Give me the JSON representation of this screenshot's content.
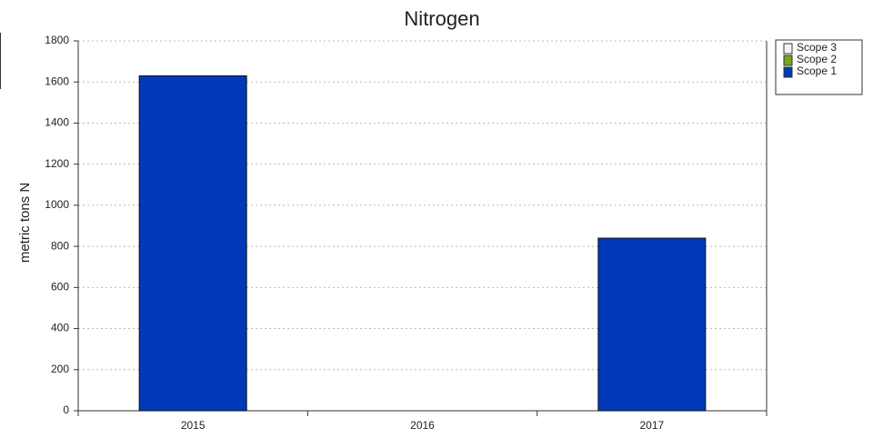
{
  "chart_data": {
    "type": "bar",
    "stacked": true,
    "title": "Nitrogen",
    "y_label": "metric tons N",
    "categories": [
      "2015",
      "2016",
      "2017"
    ],
    "series": [
      {
        "name": "Scope 1",
        "color": "#0039b8",
        "values": [
          1630,
          0,
          840
        ]
      },
      {
        "name": "Scope 2",
        "color": "#7aa51e",
        "values": [
          0,
          0,
          0
        ]
      },
      {
        "name": "Scope 3",
        "color": "#f4f4f4",
        "values": [
          0,
          0,
          0
        ]
      }
    ],
    "ylim": [
      0,
      1800
    ],
    "yticks": [
      0,
      200,
      400,
      600,
      800,
      1000,
      1200,
      1400,
      1600,
      1800
    ],
    "grid": true,
    "legend": "upper right"
  }
}
